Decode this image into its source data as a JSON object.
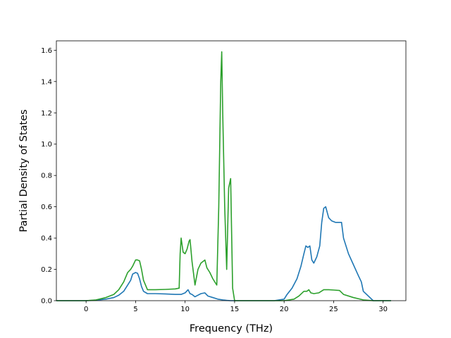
{
  "chart_data": {
    "type": "line",
    "title": "",
    "xlabel": "Frequency (THz)",
    "ylabel": "Partial Density of States",
    "xlim": [
      -3.0,
      32.3
    ],
    "ylim": [
      0.0,
      1.66
    ],
    "xticks": [
      0,
      5,
      10,
      15,
      20,
      25,
      30
    ],
    "yticks": [
      0.0,
      0.2,
      0.4,
      0.6,
      0.8,
      1.0,
      1.2,
      1.4,
      1.6
    ],
    "ytick_labels": [
      "0.0",
      "0.2",
      "0.4",
      "0.6",
      "0.8",
      "1.0",
      "1.2",
      "1.4",
      "1.6"
    ],
    "grid": false,
    "legend": "none",
    "series": [
      {
        "color": "#1f77b4",
        "x": [
          -3.0,
          0.0,
          1.0,
          2.0,
          2.8,
          3.3,
          3.8,
          4.2,
          4.5,
          4.7,
          5.0,
          5.2,
          5.4,
          5.6,
          5.8,
          6.2,
          7.0,
          8.0,
          9.0,
          9.6,
          10.0,
          10.3,
          10.5,
          10.7,
          11.0,
          11.3,
          11.6,
          12.0,
          12.3,
          12.8,
          13.3,
          13.8,
          14.2,
          14.6,
          15.0,
          16.0,
          17.0,
          18.0,
          19.0,
          20.0,
          20.3,
          20.8,
          21.3,
          21.7,
          22.0,
          22.2,
          22.4,
          22.6,
          22.8,
          23.0,
          23.3,
          23.6,
          23.8,
          24.0,
          24.2,
          24.5,
          24.8,
          25.2,
          25.6,
          25.8,
          26.0,
          26.5,
          27.0,
          27.5,
          27.8,
          28.0,
          29.0,
          30.0,
          30.8
        ],
        "y": [
          0.0,
          0.0,
          0.003,
          0.01,
          0.02,
          0.035,
          0.06,
          0.1,
          0.13,
          0.17,
          0.18,
          0.175,
          0.14,
          0.09,
          0.06,
          0.045,
          0.045,
          0.043,
          0.04,
          0.04,
          0.05,
          0.07,
          0.045,
          0.04,
          0.025,
          0.035,
          0.045,
          0.05,
          0.03,
          0.02,
          0.01,
          0.005,
          0.002,
          0.0,
          0.0,
          0.0,
          0.0,
          0.0,
          0.0,
          0.01,
          0.04,
          0.08,
          0.14,
          0.22,
          0.3,
          0.35,
          0.34,
          0.35,
          0.26,
          0.24,
          0.28,
          0.35,
          0.5,
          0.59,
          0.6,
          0.53,
          0.51,
          0.5,
          0.5,
          0.5,
          0.4,
          0.3,
          0.23,
          0.16,
          0.12,
          0.06,
          0.0,
          0.0,
          0.0
        ]
      },
      {
        "color": "#2ca02c",
        "x": [
          -3.0,
          0.0,
          1.0,
          2.0,
          2.8,
          3.3,
          3.8,
          4.2,
          4.5,
          4.7,
          5.0,
          5.2,
          5.4,
          5.6,
          5.8,
          6.2,
          7.0,
          8.0,
          9.0,
          9.4,
          9.5,
          9.6,
          9.8,
          10.0,
          10.2,
          10.4,
          10.5,
          10.7,
          11.0,
          11.3,
          11.6,
          12.0,
          12.2,
          12.5,
          12.8,
          13.2,
          13.4,
          13.6,
          13.7,
          13.8,
          14.0,
          14.2,
          14.4,
          14.6,
          14.8,
          15.0,
          16.0,
          18.0,
          20.0,
          21.0,
          21.5,
          22.0,
          22.3,
          22.5,
          22.7,
          23.0,
          23.5,
          24.0,
          24.5,
          25.0,
          25.6,
          26.0,
          27.0,
          28.0,
          29.0,
          30.0,
          30.8
        ],
        "y": [
          0.0,
          0.0,
          0.005,
          0.02,
          0.04,
          0.07,
          0.12,
          0.18,
          0.2,
          0.22,
          0.26,
          0.26,
          0.255,
          0.2,
          0.13,
          0.07,
          0.07,
          0.072,
          0.075,
          0.08,
          0.3,
          0.4,
          0.31,
          0.3,
          0.33,
          0.38,
          0.39,
          0.25,
          0.1,
          0.2,
          0.24,
          0.26,
          0.21,
          0.18,
          0.14,
          0.1,
          0.6,
          1.4,
          1.59,
          1.2,
          0.6,
          0.2,
          0.72,
          0.78,
          0.08,
          0.0,
          0.0,
          0.0,
          0.0,
          0.01,
          0.03,
          0.06,
          0.06,
          0.07,
          0.05,
          0.045,
          0.05,
          0.07,
          0.07,
          0.068,
          0.065,
          0.04,
          0.02,
          0.005,
          0.0,
          0.0,
          0.0
        ]
      }
    ]
  }
}
